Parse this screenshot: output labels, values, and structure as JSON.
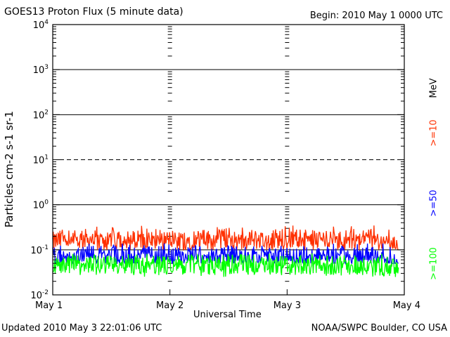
{
  "header": {
    "title": "GOES13 Proton Flux (5 minute data)",
    "begin": "Begin: 2010 May 1 0000 UTC"
  },
  "footer": {
    "updated": "Updated 2010 May  3 22:01:06 UTC",
    "source": "NOAA/SWPC Boulder, CO USA"
  },
  "legend": {
    "unit": "MeV",
    "items": [
      {
        "label": ">=10",
        "color": "#ff3000"
      },
      {
        "label": ">=50",
        "color": "#0000ff"
      },
      {
        "label": ">=100",
        "color": "#00ff00"
      }
    ]
  },
  "chart_data": {
    "type": "line",
    "title": "GOES13 Proton Flux (5 minute data)",
    "xlabel": "Universal Time",
    "ylabel": "Particles cm-2 s-1 sr-1",
    "yscale": "log",
    "ylim": [
      0.01,
      10000
    ],
    "xlim_days": [
      0,
      3
    ],
    "x_ticks": [
      "May 1",
      "May 2",
      "May 3",
      "May 4"
    ],
    "y_ticks": [
      {
        "base": "10",
        "exp": "-2"
      },
      {
        "base": "10",
        "exp": "-1"
      },
      {
        "base": "10",
        "exp": "0"
      },
      {
        "base": "10",
        "exp": "1"
      },
      {
        "base": "10",
        "exp": "2"
      },
      {
        "base": "10",
        "exp": "3"
      },
      {
        "base": "10",
        "exp": "4"
      }
    ],
    "reference_lines": [
      {
        "value": 10,
        "style": "dashed"
      },
      {
        "value": 1,
        "style": "solid"
      },
      {
        "value": 100,
        "style": "solid"
      },
      {
        "value": 1000,
        "style": "solid"
      },
      {
        "value": 0.1,
        "style": "solid"
      }
    ],
    "series": [
      {
        "name": ">=10 MeV",
        "color": "#ff3000",
        "x_days": [
          0.0,
          0.1,
          0.2,
          0.3,
          0.4,
          0.5,
          0.6,
          0.7,
          0.8,
          0.9,
          1.0,
          1.1,
          1.2,
          1.3,
          1.4,
          1.5,
          1.6,
          1.7,
          1.8,
          1.9,
          2.0,
          2.1,
          2.2,
          2.3,
          2.4,
          2.5,
          2.6,
          2.7,
          2.8,
          2.9,
          2.95
        ],
        "values": [
          0.15,
          0.17,
          0.16,
          0.18,
          0.15,
          0.19,
          0.17,
          0.16,
          0.18,
          0.17,
          0.16,
          0.15,
          0.18,
          0.17,
          0.16,
          0.19,
          0.16,
          0.17,
          0.15,
          0.18,
          0.16,
          0.17,
          0.16,
          0.18,
          0.15,
          0.17,
          0.16,
          0.18,
          0.15,
          0.14,
          0.12
        ],
        "min": 0.1,
        "max": 0.35
      },
      {
        "name": ">=50 MeV",
        "color": "#0000ff",
        "x_days": [
          0.0,
          0.1,
          0.2,
          0.3,
          0.4,
          0.5,
          0.6,
          0.7,
          0.8,
          0.9,
          1.0,
          1.1,
          1.2,
          1.3,
          1.4,
          1.5,
          1.6,
          1.7,
          1.8,
          1.9,
          2.0,
          2.1,
          2.2,
          2.3,
          2.4,
          2.5,
          2.6,
          2.7,
          2.8,
          2.9,
          2.95
        ],
        "values": [
          0.075,
          0.08,
          0.07,
          0.078,
          0.072,
          0.08,
          0.075,
          0.07,
          0.078,
          0.074,
          0.072,
          0.07,
          0.076,
          0.074,
          0.07,
          0.078,
          0.072,
          0.074,
          0.07,
          0.076,
          0.072,
          0.074,
          0.07,
          0.076,
          0.07,
          0.074,
          0.071,
          0.075,
          0.068,
          0.06,
          0.052
        ],
        "min": 0.05,
        "max": 0.14
      },
      {
        "name": ">=100 MeV",
        "color": "#00ff00",
        "x_days": [
          0.0,
          0.1,
          0.2,
          0.3,
          0.4,
          0.5,
          0.6,
          0.7,
          0.8,
          0.9,
          1.0,
          1.1,
          1.2,
          1.3,
          1.4,
          1.5,
          1.6,
          1.7,
          1.8,
          1.9,
          2.0,
          2.1,
          2.2,
          2.3,
          2.4,
          2.5,
          2.6,
          2.7,
          2.8,
          2.9,
          2.95
        ],
        "values": [
          0.045,
          0.05,
          0.044,
          0.048,
          0.046,
          0.05,
          0.047,
          0.045,
          0.049,
          0.046,
          0.045,
          0.044,
          0.048,
          0.046,
          0.044,
          0.049,
          0.045,
          0.047,
          0.044,
          0.048,
          0.045,
          0.046,
          0.044,
          0.048,
          0.044,
          0.046,
          0.045,
          0.047,
          0.043,
          0.04,
          0.035
        ],
        "min": 0.025,
        "max": 0.085
      }
    ]
  }
}
